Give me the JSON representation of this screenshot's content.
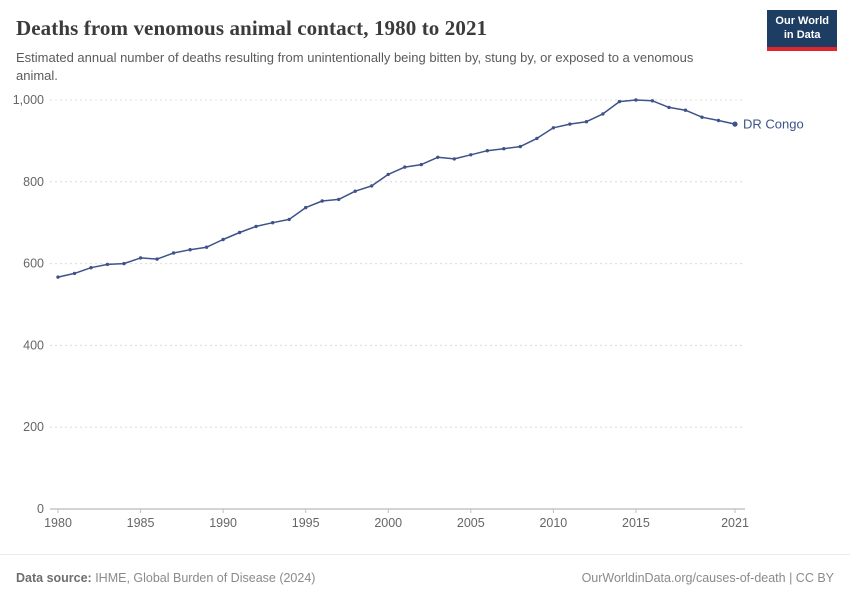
{
  "header": {
    "title": "Deaths from venomous animal contact, 1980 to 2021",
    "subtitle": "Estimated annual number of deaths resulting from unintentionally being bitten by, stung by, or exposed to a venomous animal.",
    "logo": {
      "line1": "Our World",
      "line2": "in Data",
      "bg_color": "#1d3d63",
      "accent_color": "#e0262c"
    }
  },
  "chart_data": {
    "type": "line",
    "title": "Deaths from venomous animal contact, 1980 to 2021",
    "xlabel": "",
    "ylabel": "",
    "ylim": [
      0,
      1000
    ],
    "yticks": [
      0,
      200,
      400,
      600,
      800,
      1000
    ],
    "xticks": [
      1980,
      1985,
      1990,
      1995,
      2000,
      2005,
      2010,
      2015,
      2021
    ],
    "grid": "horizontal-dashed",
    "legend": "end-of-line-label",
    "x": [
      1980,
      1981,
      1982,
      1983,
      1984,
      1985,
      1986,
      1987,
      1988,
      1989,
      1990,
      1991,
      1992,
      1993,
      1994,
      1995,
      1996,
      1997,
      1998,
      1999,
      2000,
      2001,
      2002,
      2003,
      2004,
      2005,
      2006,
      2007,
      2008,
      2009,
      2010,
      2011,
      2012,
      2013,
      2014,
      2015,
      2016,
      2017,
      2018,
      2019,
      2020,
      2021
    ],
    "series": [
      {
        "name": "DR Congo",
        "color": "#3d5389",
        "values": [
          567,
          576,
          590,
          598,
          600,
          614,
          611,
          626,
          634,
          640,
          659,
          676,
          691,
          700,
          708,
          737,
          753,
          757,
          777,
          790,
          818,
          836,
          842,
          860,
          856,
          866,
          876,
          881,
          886,
          906,
          932,
          941,
          947,
          966,
          996,
          1000,
          998,
          982,
          975,
          958,
          950,
          941
        ]
      }
    ]
  },
  "footer": {
    "source_label": "Data source:",
    "source_text": " IHME, Global Burden of Disease (2024)",
    "credit": "OurWorldinData.org/causes-of-death | CC BY"
  }
}
